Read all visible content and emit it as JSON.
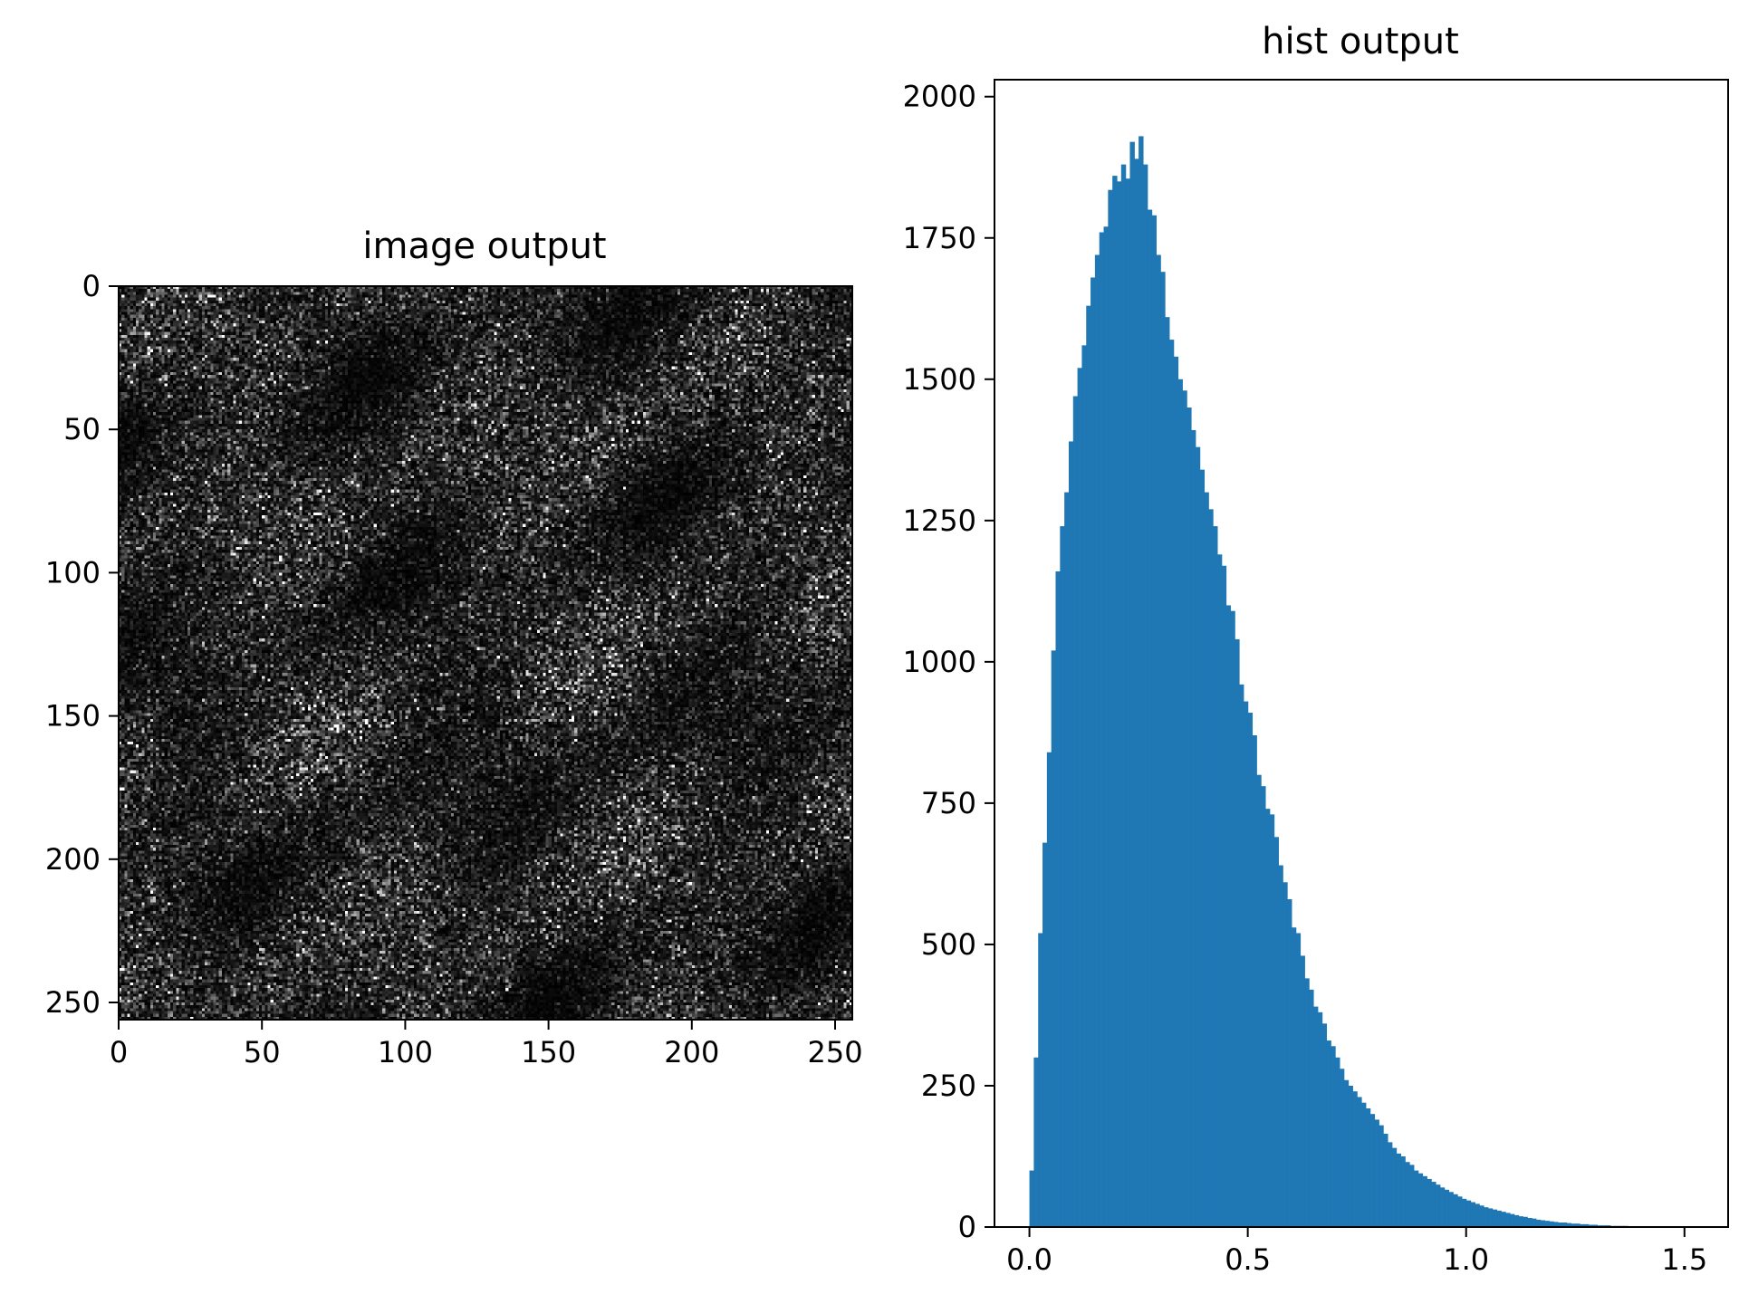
{
  "figure": {
    "background": "#ffffff"
  },
  "chart_data": [
    {
      "type": "heatmap",
      "title": "image output",
      "colormap": "gray",
      "image_size": [
        256,
        256
      ],
      "xlim": [
        0,
        256
      ],
      "ylim": [
        256,
        0
      ],
      "xticks": [
        0,
        50,
        100,
        150,
        200,
        250
      ],
      "yticks": [
        0,
        50,
        100,
        150,
        200,
        250
      ],
      "xtick_labels": [
        "0",
        "50",
        "100",
        "150",
        "200",
        "250"
      ],
      "ytick_labels": [
        "0",
        "50",
        "100",
        "150",
        "200",
        "250"
      ],
      "xlabel": "",
      "ylabel": "",
      "grid": false
    },
    {
      "type": "bar",
      "subtype": "histogram",
      "title": "hist output",
      "color": "#1f77b4",
      "xlim": [
        -0.08,
        1.6
      ],
      "ylim": [
        0,
        2030
      ],
      "xticks": [
        0.0,
        0.5,
        1.0,
        1.5
      ],
      "yticks": [
        0,
        250,
        500,
        750,
        1000,
        1250,
        1500,
        1750,
        2000
      ],
      "xtick_labels": [
        "0.0",
        "0.5",
        "1.0",
        "1.5"
      ],
      "ytick_labels": [
        "0",
        "250",
        "500",
        "750",
        "1000",
        "1250",
        "1500",
        "1750",
        "2000"
      ],
      "xlabel": "",
      "ylabel": "",
      "grid": false,
      "bin_start": 0.0,
      "bin_width": 0.01,
      "counts": [
        100,
        300,
        520,
        680,
        840,
        1020,
        1160,
        1240,
        1300,
        1390,
        1470,
        1520,
        1560,
        1630,
        1680,
        1720,
        1760,
        1770,
        1835,
        1860,
        1850,
        1880,
        1855,
        1920,
        1890,
        1930,
        1880,
        1800,
        1790,
        1720,
        1690,
        1610,
        1570,
        1540,
        1500,
        1480,
        1450,
        1410,
        1380,
        1340,
        1300,
        1270,
        1240,
        1190,
        1170,
        1100,
        1090,
        1040,
        960,
        930,
        910,
        870,
        800,
        780,
        740,
        730,
        690,
        640,
        610,
        580,
        530,
        520,
        480,
        440,
        420,
        390,
        380,
        360,
        330,
        320,
        300,
        280,
        260,
        250,
        240,
        230,
        220,
        210,
        200,
        190,
        180,
        165,
        150,
        140,
        130,
        125,
        115,
        110,
        100,
        95,
        90,
        85,
        80,
        75,
        70,
        66,
        62,
        58,
        54,
        50,
        47,
        44,
        41,
        38,
        35,
        33,
        31,
        29,
        27,
        25,
        23,
        21,
        19,
        18,
        16,
        15,
        13,
        12,
        11,
        10,
        9,
        8,
        8,
        7,
        6,
        6,
        5,
        5,
        4,
        4,
        3,
        3,
        3,
        2,
        2,
        2,
        2,
        1,
        1,
        1,
        1,
        1,
        1,
        1,
        0,
        0,
        0,
        0,
        0,
        0,
        0,
        0,
        0,
        0,
        0,
        0,
        0,
        0
      ]
    }
  ]
}
